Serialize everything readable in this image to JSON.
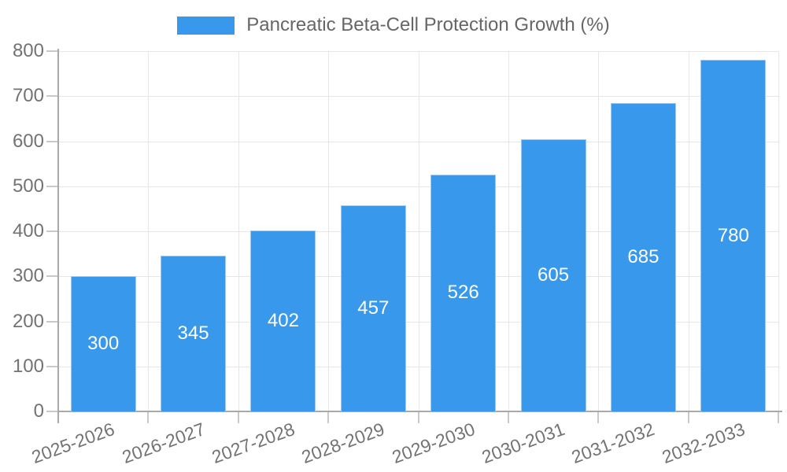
{
  "legend": {
    "label": "Pancreatic Beta-Cell Protection Growth (%)"
  },
  "chart_data": {
    "type": "bar",
    "title": "Pancreatic Beta-Cell Protection Growth (%)",
    "categories": [
      "2025-2026",
      "2026-2027",
      "2027-2028",
      "2028-2029",
      "2029-2030",
      "2030-2031",
      "2031-2032",
      "2032-2033"
    ],
    "series": [
      {
        "name": "Pancreatic Beta-Cell Protection Growth (%)",
        "values": [
          300,
          345,
          402,
          457,
          526,
          605,
          685,
          780
        ]
      }
    ],
    "xlabel": "",
    "ylabel": "",
    "ylim": [
      0,
      800
    ],
    "yticks": [
      0,
      100,
      200,
      300,
      400,
      500,
      600,
      700,
      800
    ],
    "grid": true,
    "legend_position": "top",
    "value_labels_shown": true,
    "x_label_rotation_deg": -20,
    "colors": {
      "bar_fill": "#3898ec",
      "bar_border": "#9dc9f2",
      "grid": "#e6e6e6",
      "axis": "#a9a9a9",
      "tick": "#c9c9c9",
      "label_text": "#737373",
      "value_label": "#ffffff",
      "legend_text": "#666666"
    }
  }
}
